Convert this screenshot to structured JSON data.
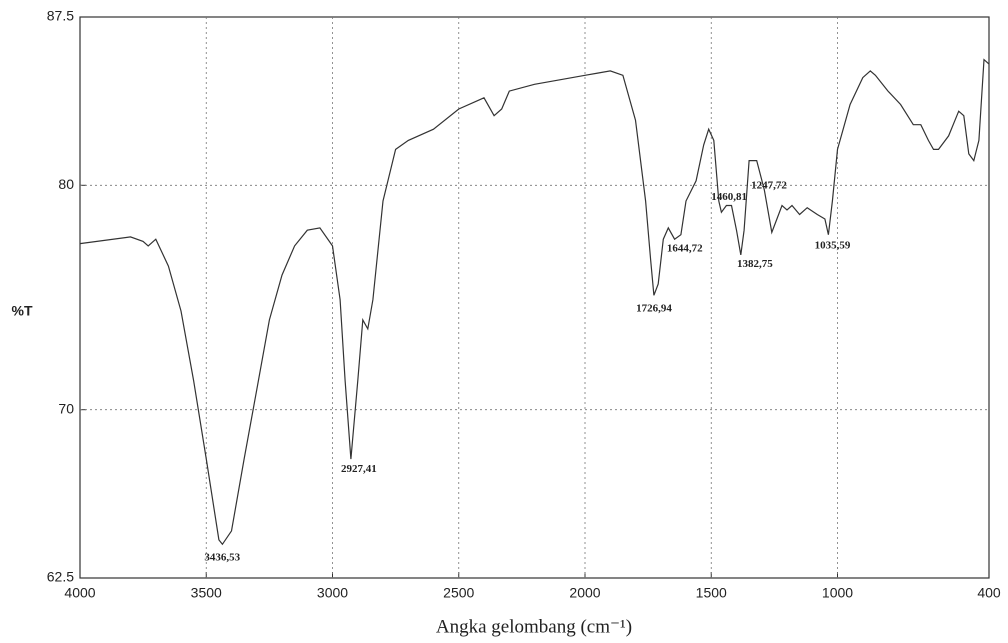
{
  "chart_data": {
    "type": "line",
    "ylabel": "%T",
    "xlabel": "Angka gelombang (cm⁻¹)",
    "xlim": [
      4000,
      400
    ],
    "ylim": [
      62.5,
      87.5
    ],
    "xticks": [
      4000,
      3500,
      3000,
      2500,
      2000,
      1500,
      1000,
      400
    ],
    "yticks": [
      62.5,
      70,
      80,
      87.5
    ],
    "grid": true,
    "series": [
      {
        "color": "#333333",
        "x": [
          4000,
          3800,
          3750,
          3730,
          3700,
          3650,
          3600,
          3550,
          3500,
          3450,
          3436,
          3400,
          3350,
          3300,
          3250,
          3200,
          3150,
          3100,
          3050,
          3000,
          2970,
          2950,
          2927,
          2900,
          2880,
          2860,
          2840,
          2800,
          2750,
          2700,
          2600,
          2500,
          2400,
          2360,
          2330,
          2300,
          2200,
          2100,
          2000,
          1950,
          1900,
          1850,
          1800,
          1760,
          1740,
          1727,
          1710,
          1690,
          1670,
          1645,
          1620,
          1600,
          1560,
          1530,
          1510,
          1490,
          1470,
          1460,
          1440,
          1420,
          1400,
          1383,
          1370,
          1350,
          1320,
          1290,
          1260,
          1240,
          1220,
          1200,
          1180,
          1150,
          1120,
          1080,
          1050,
          1036,
          1020,
          1000,
          950,
          900,
          870,
          850,
          800,
          750,
          700,
          670,
          640,
          620,
          600,
          560,
          520,
          500,
          480,
          460,
          440,
          420,
          400
        ],
        "values": [
          77.4,
          77.7,
          77.5,
          77.3,
          77.6,
          76.4,
          74.4,
          71.3,
          67.8,
          64.2,
          64.0,
          64.6,
          67.8,
          70.9,
          74.0,
          76.0,
          77.3,
          78.0,
          78.1,
          77.3,
          74.9,
          71.3,
          67.8,
          71.3,
          74.0,
          73.6,
          74.9,
          79.3,
          81.6,
          82.0,
          82.5,
          83.4,
          83.9,
          83.1,
          83.4,
          84.2,
          84.5,
          84.7,
          84.9,
          85.0,
          85.1,
          84.9,
          82.9,
          79.3,
          76.7,
          75.1,
          75.6,
          77.6,
          78.1,
          77.6,
          77.8,
          79.3,
          80.2,
          81.8,
          82.5,
          82.0,
          79.3,
          78.8,
          79.1,
          79.1,
          78.0,
          76.9,
          78.0,
          81.1,
          81.1,
          79.8,
          77.9,
          78.5,
          79.1,
          78.9,
          79.1,
          78.7,
          79.0,
          78.7,
          78.5,
          77.8,
          79.3,
          81.6,
          83.6,
          84.8,
          85.1,
          84.9,
          84.2,
          83.6,
          82.7,
          82.7,
          82.0,
          81.6,
          81.6,
          82.2,
          83.3,
          83.1,
          81.4,
          81.1,
          82.0,
          85.6,
          85.4
        ]
      }
    ],
    "annotations": [
      {
        "x": 3436.53,
        "label": "3436,53"
      },
      {
        "x": 2927.41,
        "label": "2927,41"
      },
      {
        "x": 1726.94,
        "label": "1726,94"
      },
      {
        "x": 1644.72,
        "label": "1644,72"
      },
      {
        "x": 1460.81,
        "label": "1460,81"
      },
      {
        "x": 1382.75,
        "label": "1382,75"
      },
      {
        "x": 1247.72,
        "label": "1247,72"
      },
      {
        "x": 1035.59,
        "label": "1035,59"
      }
    ]
  }
}
